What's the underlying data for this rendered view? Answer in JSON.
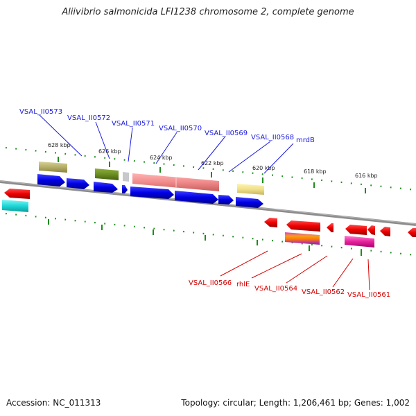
{
  "title": "Aliivibrio salmonicida LFI1238 chromosome 2, complete genome",
  "footer": {
    "accession": "Accession: NC_011313",
    "summary": "Topology: circular; Length: 1,206,461 bp; Genes: 1,002"
  },
  "scale_labels": [
    "628 kbp",
    "626 kbp",
    "624 kbp",
    "622 kbp",
    "620 kbp",
    "618 kbp",
    "616 kbp"
  ],
  "forward_genes": [
    "VSAL_II0573",
    "VSAL_II0572",
    "VSAL_II0571",
    "VSAL_II0570",
    "VSAL_II0569",
    "VSAL_II0568",
    "mrdB"
  ],
  "reverse_genes": [
    "VSAL_II0566",
    "rhlE",
    "VSAL_II0564",
    "VSAL_II0562",
    "VSAL_II0561"
  ],
  "colors": {
    "forward_label": "#1a1adf",
    "reverse_label": "#d40000",
    "forward_arrow": "#0000ee",
    "reverse_arrow": "#ee0000",
    "backbone": "#8c8c8c",
    "ticks": "#1e8c1e"
  }
}
